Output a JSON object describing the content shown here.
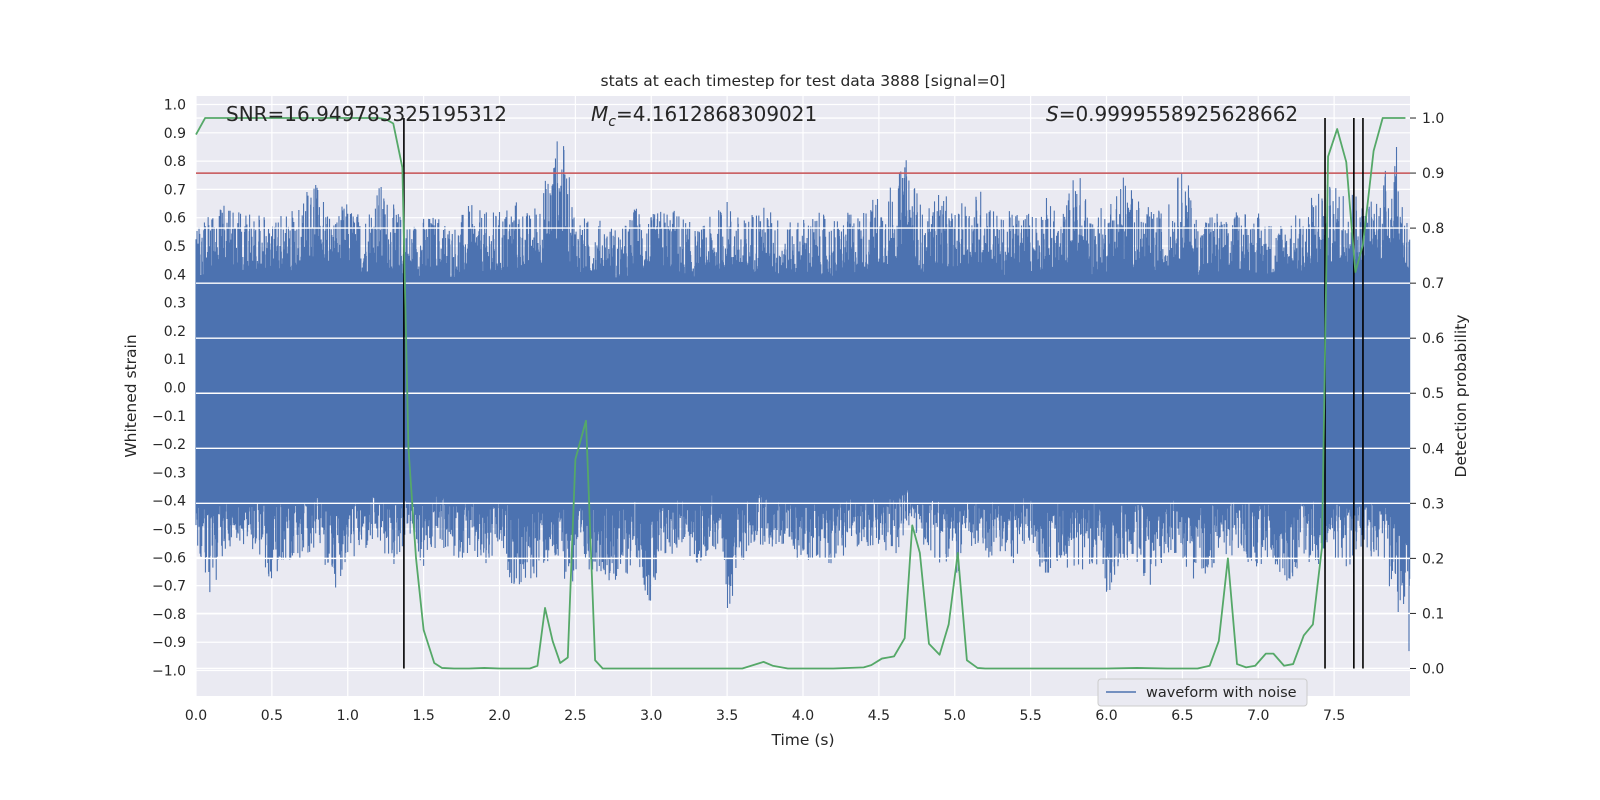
{
  "chart_data": {
    "type": "line",
    "title": "stats at each timestep for test data 3888 [signal=0]",
    "xlabel": "Time (s)",
    "ylabel_left": "Whitened strain",
    "ylabel_right": "Detection probability",
    "xlim": [
      0.0,
      8.0
    ],
    "ylim_left": [
      -1.09,
      1.03
    ],
    "ylim_right": [
      -0.05,
      1.04
    ],
    "x_ticks": [
      "0.0",
      "0.5",
      "1.0",
      "1.5",
      "2.0",
      "2.5",
      "3.0",
      "3.5",
      "4.0",
      "4.5",
      "5.0",
      "5.5",
      "6.0",
      "6.5",
      "7.0",
      "7.5"
    ],
    "y_ticks_left": [
      "1.0",
      "0.9",
      "0.8",
      "0.7",
      "0.6",
      "0.5",
      "0.4",
      "0.3",
      "0.2",
      "0.1",
      "0.0",
      "−0.1",
      "−0.2",
      "−0.3",
      "−0.4",
      "−0.5",
      "−0.6",
      "−0.7",
      "−0.8",
      "−0.9",
      "−1.0"
    ],
    "y_ticks_right": [
      "1.0",
      "0.9",
      "0.8",
      "0.7",
      "0.6",
      "0.5",
      "0.4",
      "0.3",
      "0.2",
      "0.1",
      "0.0"
    ],
    "annotations": {
      "snr": "SNR=16.949783325195312",
      "mc_symbol": "M",
      "mc_subscript": "c",
      "mc_value": "=4.1612868309021",
      "s_symbol": "S",
      "s_value": "=0.9999558925628662"
    },
    "threshold_line": {
      "value": 0.9,
      "axis": "right",
      "color": "#c44e52"
    },
    "vertical_markers_x": [
      1.37,
      7.44,
      7.63,
      7.69
    ],
    "grid": true,
    "legend": {
      "position": "lower-right",
      "entries": [
        {
          "label": "waveform with noise",
          "color": "#4c72b0"
        }
      ]
    },
    "series": [
      {
        "name": "waveform with noise",
        "axis": "left",
        "color": "#4c72b0",
        "envelope": {
          "x": [
            0.0,
            0.1,
            0.2,
            0.3,
            0.4,
            0.5,
            0.6,
            0.7,
            0.8,
            0.9,
            1.0,
            1.1,
            1.2,
            1.3,
            1.4,
            1.5,
            1.6,
            1.7,
            1.8,
            1.9,
            2.0,
            2.1,
            2.2,
            2.3,
            2.4,
            2.5,
            2.6,
            2.7,
            2.8,
            2.9,
            3.0,
            3.1,
            3.2,
            3.3,
            3.4,
            3.5,
            3.6,
            3.7,
            3.8,
            3.9,
            4.0,
            4.1,
            4.2,
            4.3,
            4.4,
            4.5,
            4.6,
            4.7,
            4.8,
            4.9,
            5.0,
            5.1,
            5.2,
            5.3,
            5.4,
            5.5,
            5.6,
            5.7,
            5.8,
            5.9,
            6.0,
            6.1,
            6.2,
            6.3,
            6.4,
            6.5,
            6.6,
            6.7,
            6.8,
            6.9,
            7.0,
            7.1,
            7.2,
            7.3,
            7.4,
            7.5,
            7.6,
            7.7,
            7.8,
            7.9,
            8.0
          ],
          "upper": [
            0.56,
            0.63,
            0.65,
            0.62,
            0.64,
            0.6,
            0.61,
            0.68,
            0.72,
            0.62,
            0.66,
            0.61,
            0.74,
            0.65,
            0.59,
            0.61,
            0.62,
            0.58,
            0.65,
            0.62,
            0.63,
            0.68,
            0.62,
            0.74,
            0.93,
            0.63,
            0.59,
            0.6,
            0.56,
            0.65,
            0.61,
            0.65,
            0.62,
            0.56,
            0.61,
            0.67,
            0.59,
            0.66,
            0.63,
            0.58,
            0.61,
            0.62,
            0.6,
            0.62,
            0.64,
            0.7,
            0.73,
            0.83,
            0.6,
            0.72,
            0.62,
            0.69,
            0.72,
            0.6,
            0.64,
            0.63,
            0.68,
            0.6,
            0.8,
            0.62,
            0.65,
            0.78,
            0.67,
            0.63,
            0.64,
            0.8,
            0.6,
            0.64,
            0.59,
            0.65,
            0.62,
            0.59,
            0.61,
            0.62,
            0.74,
            0.71,
            0.75,
            0.65,
            0.72,
            0.89,
            0.56
          ],
          "lower": [
            -0.6,
            -0.74,
            -0.57,
            -0.55,
            -0.58,
            -0.7,
            -0.62,
            -0.6,
            -0.57,
            -0.73,
            -0.62,
            -0.6,
            -0.57,
            -0.65,
            -0.52,
            -0.66,
            -0.56,
            -0.62,
            -0.6,
            -0.68,
            -0.59,
            -0.72,
            -0.71,
            -0.64,
            -0.66,
            -0.72,
            -0.64,
            -0.67,
            -0.72,
            -0.6,
            -0.8,
            -0.62,
            -0.56,
            -0.66,
            -0.56,
            -0.8,
            -0.63,
            -0.55,
            -0.58,
            -0.56,
            -0.64,
            -0.6,
            -0.63,
            -0.58,
            -0.56,
            -0.6,
            -0.6,
            -0.5,
            -0.57,
            -0.62,
            -0.68,
            -0.58,
            -0.61,
            -0.6,
            -0.63,
            -0.56,
            -0.68,
            -0.62,
            -0.66,
            -0.62,
            -0.74,
            -0.65,
            -0.62,
            -0.72,
            -0.58,
            -0.62,
            -0.7,
            -0.64,
            -0.59,
            -0.62,
            -0.65,
            -0.62,
            -0.7,
            -0.61,
            -0.64,
            -0.6,
            -0.68,
            -0.62,
            -0.6,
            -0.78,
            -0.98
          ]
        }
      },
      {
        "name": "detection probability",
        "axis": "right",
        "color": "#55a868",
        "x": [
          0.0,
          0.06,
          0.13,
          0.2,
          0.3,
          0.5,
          0.8,
          1.0,
          1.2,
          1.25,
          1.3,
          1.36,
          1.4,
          1.45,
          1.5,
          1.57,
          1.62,
          1.7,
          1.8,
          1.9,
          2.0,
          2.1,
          2.2,
          2.25,
          2.3,
          2.35,
          2.4,
          2.45,
          2.5,
          2.57,
          2.63,
          2.68,
          2.73,
          2.78,
          2.83,
          2.9,
          3.0,
          3.2,
          3.4,
          3.6,
          3.74,
          3.8,
          3.9,
          4.0,
          4.2,
          4.4,
          4.45,
          4.52,
          4.6,
          4.67,
          4.72,
          4.77,
          4.83,
          4.9,
          4.96,
          5.02,
          5.08,
          5.15,
          5.2,
          5.3,
          5.5,
          5.8,
          6.0,
          6.2,
          6.4,
          6.6,
          6.68,
          6.74,
          6.8,
          6.86,
          6.92,
          6.98,
          7.05,
          7.1,
          7.17,
          7.23,
          7.3,
          7.36,
          7.42,
          7.46,
          7.52,
          7.58,
          7.64,
          7.69,
          7.76,
          7.82,
          7.88,
          7.97
        ],
        "y": [
          0.97,
          1.0,
          1.0,
          1.0,
          1.0,
          1.0,
          1.0,
          1.0,
          1.0,
          0.998,
          0.99,
          0.91,
          0.4,
          0.2,
          0.07,
          0.01,
          0.001,
          0.0,
          0.0,
          0.001,
          0.0,
          0.0,
          0.0,
          0.005,
          0.11,
          0.05,
          0.01,
          0.02,
          0.38,
          0.45,
          0.015,
          0.0,
          0.0,
          0.0,
          0.0,
          0.0,
          0.0,
          0.0,
          0.0,
          0.0,
          0.012,
          0.005,
          0.0,
          0.0,
          0.0,
          0.002,
          0.006,
          0.018,
          0.022,
          0.055,
          0.26,
          0.21,
          0.045,
          0.025,
          0.08,
          0.21,
          0.015,
          0.001,
          0.0,
          0.0,
          0.0,
          0.0,
          0.0,
          0.001,
          0.0,
          0.0,
          0.005,
          0.05,
          0.2,
          0.008,
          0.002,
          0.005,
          0.027,
          0.027,
          0.005,
          0.008,
          0.06,
          0.08,
          0.22,
          0.93,
          0.98,
          0.92,
          0.72,
          0.77,
          0.94,
          1.0,
          1.0,
          1.0
        ]
      }
    ]
  }
}
